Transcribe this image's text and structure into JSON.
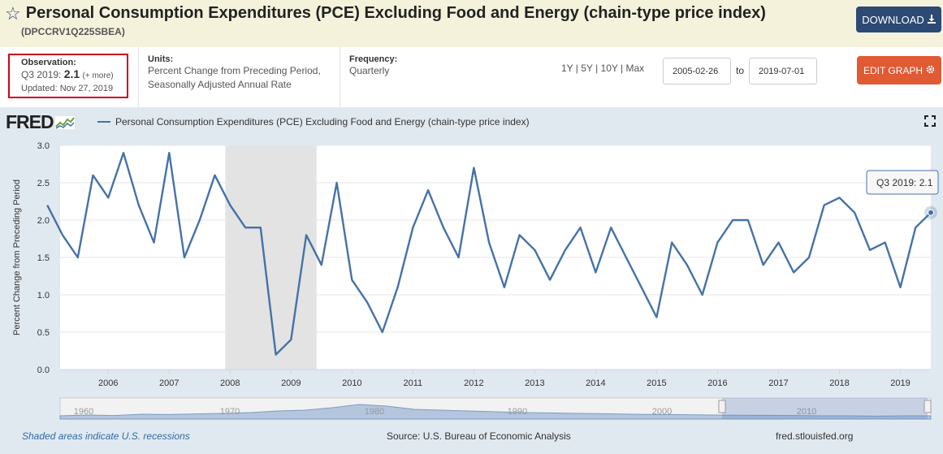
{
  "header": {
    "title": "Personal Consumption Expenditures (PCE) Excluding Food and Energy (chain-type price index)",
    "series_id": "(DPCCRV1Q225SBEA)",
    "download_label": "DOWNLOAD"
  },
  "observation": {
    "label": "Observation:",
    "period": "Q3 2019:",
    "value": "2.1",
    "more": "(+ more)",
    "updated": "Updated: Nov 27, 2019"
  },
  "units": {
    "label": "Units:",
    "line1": "Percent Change from Preceding Period,",
    "line2": "Seasonally Adjusted Annual Rate"
  },
  "frequency": {
    "label": "Frequency:",
    "value": "Quarterly"
  },
  "ranges": [
    "1Y",
    "5Y",
    "10Y",
    "Max"
  ],
  "date_range": {
    "start": "2005-02-26",
    "to_label": "to",
    "end": "2019-07-01"
  },
  "edit_label": "EDIT GRAPH",
  "graph": {
    "logo": "FRED",
    "legend": "Personal Consumption Expenditures (PCE) Excluding Food and Energy (chain-type price index)",
    "tooltip": {
      "label": "Q3 2019:",
      "value": "2.1"
    },
    "line_color": "#4572a7",
    "recession_color": "#e3e3e3"
  },
  "footer": {
    "recessions": "Shaded areas indicate U.S. recessions",
    "source": "Source: U.S. Bureau of Economic Analysis",
    "site": "fred.stlouisfed.org"
  },
  "chart_data": {
    "type": "line",
    "title": "",
    "xlabel": "",
    "ylabel": "Percent Change from Preceding Period",
    "ylim": [
      0,
      3
    ],
    "yticks": [
      "0.0",
      "0.5",
      "1.0",
      "1.5",
      "2.0",
      "2.5",
      "3.0"
    ],
    "xlim": [
      2005.21,
      2019.5
    ],
    "xticks": [
      {
        "label": "2006",
        "value": 2006
      },
      {
        "label": "2007",
        "value": 2007
      },
      {
        "label": "2008",
        "value": 2008
      },
      {
        "label": "2009",
        "value": 2009
      },
      {
        "label": "2010",
        "value": 2010
      },
      {
        "label": "2011",
        "value": 2011
      },
      {
        "label": "2012",
        "value": 2012
      },
      {
        "label": "2013",
        "value": 2013
      },
      {
        "label": "2014",
        "value": 2014
      },
      {
        "label": "2015",
        "value": 2015
      },
      {
        "label": "2016",
        "value": 2016
      },
      {
        "label": "2017",
        "value": 2017
      },
      {
        "label": "2018",
        "value": 2018
      },
      {
        "label": "2019",
        "value": 2019
      }
    ],
    "recessions": [
      [
        2007.92,
        2009.42
      ]
    ],
    "series": [
      {
        "x": [
          "2005-Q1",
          "2005-Q2",
          "2005-Q3",
          "2005-Q4",
          "2006-Q1",
          "2006-Q2",
          "2006-Q3",
          "2006-Q4",
          "2007-Q1",
          "2007-Q2",
          "2007-Q3",
          "2007-Q4",
          "2008-Q1",
          "2008-Q2",
          "2008-Q3",
          "2008-Q4",
          "2009-Q1",
          "2009-Q2",
          "2009-Q3",
          "2009-Q4",
          "2010-Q1",
          "2010-Q2",
          "2010-Q3",
          "2010-Q4",
          "2011-Q1",
          "2011-Q2",
          "2011-Q3",
          "2011-Q4",
          "2012-Q1",
          "2012-Q2",
          "2012-Q3",
          "2012-Q4",
          "2013-Q1",
          "2013-Q2",
          "2013-Q3",
          "2013-Q4",
          "2014-Q1",
          "2014-Q2",
          "2014-Q3",
          "2014-Q4",
          "2015-Q1",
          "2015-Q2",
          "2015-Q3",
          "2015-Q4",
          "2016-Q1",
          "2016-Q2",
          "2016-Q3",
          "2016-Q4",
          "2017-Q1",
          "2017-Q2",
          "2017-Q3",
          "2017-Q4",
          "2018-Q1",
          "2018-Q2",
          "2018-Q3",
          "2018-Q4",
          "2019-Q1",
          "2019-Q2",
          "2019-Q3"
        ],
        "values": [
          2.2,
          1.8,
          1.5,
          2.6,
          2.3,
          2.9,
          2.2,
          1.7,
          2.9,
          1.5,
          2.0,
          2.6,
          2.2,
          1.9,
          1.9,
          0.2,
          0.4,
          1.8,
          1.4,
          2.5,
          1.2,
          0.9,
          0.5,
          1.1,
          1.9,
          2.4,
          1.9,
          1.5,
          2.7,
          1.7,
          1.1,
          1.8,
          1.6,
          1.2,
          1.6,
          1.9,
          1.3,
          1.9,
          1.5,
          1.1,
          0.7,
          1.7,
          1.4,
          1.0,
          1.7,
          2.0,
          2.0,
          1.4,
          1.7,
          1.3,
          1.5,
          2.2,
          2.3,
          2.1,
          1.6,
          1.7,
          1.1,
          1.9,
          2.1
        ]
      }
    ],
    "navigator": {
      "labels": [
        "1960",
        "1970",
        "1980",
        "1990",
        "2000",
        "2010"
      ]
    }
  }
}
